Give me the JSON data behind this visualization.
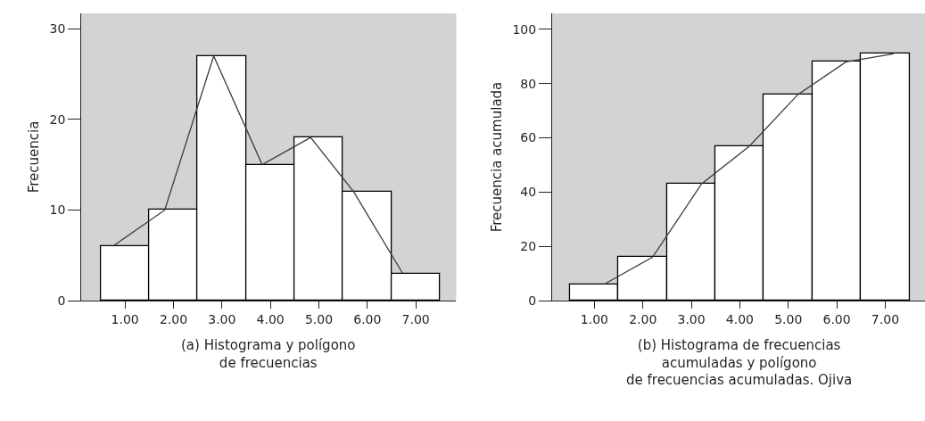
{
  "chart_data": [
    {
      "type": "bar",
      "ylabel": "Frecuencia",
      "x": [
        1,
        2,
        3,
        4,
        5,
        6,
        7
      ],
      "xlim": [
        0.1,
        7.83
      ],
      "ylim": [
        0,
        31.7
      ],
      "xticks": [
        {
          "value": 1,
          "label": "1.00"
        },
        {
          "value": 2,
          "label": "2.00"
        },
        {
          "value": 3,
          "label": "3.00"
        },
        {
          "value": 4,
          "label": "4.00"
        },
        {
          "value": 5,
          "label": "5.00"
        },
        {
          "value": 6,
          "label": "6.00"
        },
        {
          "value": 7,
          "label": "7.00"
        }
      ],
      "yticks": [
        0,
        10,
        20,
        30
      ],
      "series": [
        {
          "color": "#ffffff",
          "values": [
            6,
            10,
            27,
            15,
            18,
            12,
            3
          ]
        },
        {
          "type": "line",
          "color": "#3a3a3a",
          "x": [
            0.75,
            1.82,
            2.83,
            3.83,
            4.83,
            5.72,
            6.73
          ],
          "values": [
            6,
            10,
            27,
            15,
            18,
            12,
            3
          ]
        }
      ],
      "annotations": [
        "(a) Histograma y polígono\nde frecuencias"
      ]
    },
    {
      "type": "bar",
      "ylabel": "Frecuencia acumulada",
      "x": [
        1,
        2,
        3,
        4,
        5,
        6,
        7
      ],
      "xlim": [
        0.13,
        7.82
      ],
      "ylim": [
        0,
        105.9
      ],
      "xticks": [
        {
          "value": 1,
          "label": "1.00"
        },
        {
          "value": 2,
          "label": "2.00"
        },
        {
          "value": 3,
          "label": "3.00"
        },
        {
          "value": 4,
          "label": "4.00"
        },
        {
          "value": 5,
          "label": "5.00"
        },
        {
          "value": 6,
          "label": "6.00"
        },
        {
          "value": 7,
          "label": "7.00"
        }
      ],
      "yticks": [
        0,
        20,
        40,
        60,
        80,
        100
      ],
      "series": [
        {
          "color": "#ffffff",
          "values": [
            6,
            16,
            43,
            57,
            76,
            88,
            91
          ]
        },
        {
          "type": "line",
          "color": "#3a3a3a",
          "x": [
            1.2,
            2.2,
            3.21,
            4.2,
            5.2,
            6.19,
            7.17
          ],
          "values": [
            6,
            16,
            43,
            57,
            76,
            88,
            91
          ]
        }
      ],
      "annotations": [
        "(b) Histograma de frecuencias\nacumuladas y polígono\nde frecuencias acumuladas. Ojiva"
      ]
    }
  ]
}
